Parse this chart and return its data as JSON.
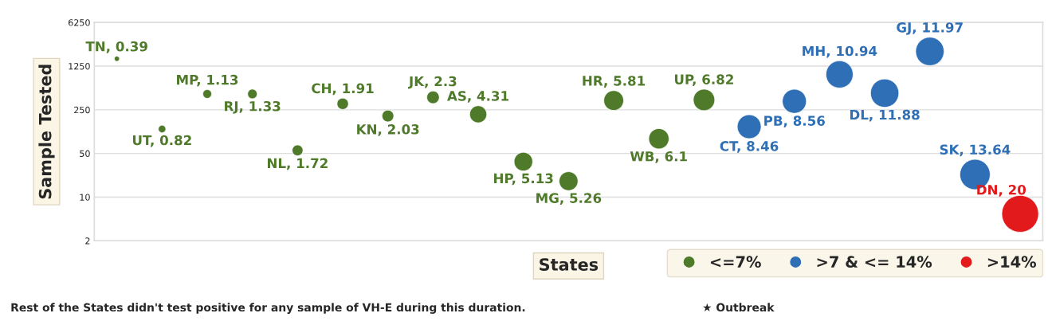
{
  "chart_data": {
    "type": "bubble",
    "ylabel": "Sample Tested",
    "xlabel": "States",
    "categories": [
      null,
      null,
      null,
      null,
      null,
      null,
      null,
      null,
      null,
      null,
      null,
      null,
      null,
      null,
      null,
      null,
      null,
      null,
      null,
      null,
      null
    ],
    "series": [
      {
        "name": "<=7%",
        "color": "#4e7a2a",
        "values": [
          1640,
          123,
          448,
          448,
          56,
          312,
          199,
          396,
          212,
          37,
          18,
          352,
          86,
          360,
          null,
          null,
          null,
          null,
          null,
          null,
          null
        ],
        "sizes": [
          0.0195,
          0.041,
          0.0565,
          0.0665,
          0.086,
          0.0955,
          0.1015,
          0.115,
          0.2155,
          0.2565,
          0.263,
          0.2905,
          0.305,
          0.341,
          null,
          null,
          null,
          null,
          null,
          null,
          null
        ]
      },
      {
        "name": ">7 & <= 14%",
        "color": "#2e6fb5",
        "values": [
          null,
          null,
          null,
          null,
          null,
          null,
          null,
          null,
          null,
          null,
          null,
          null,
          null,
          null,
          134,
          342,
          922,
          462,
          2150,
          23,
          null
        ],
        "sizes": [
          null,
          null,
          null,
          null,
          null,
          null,
          null,
          null,
          null,
          null,
          null,
          null,
          null,
          null,
          0.423,
          0.428,
          0.547,
          0.594,
          0.5985,
          0.682,
          null
        ]
      },
      {
        "name": ">14%",
        "color": "#e31a1c",
        "values": [
          null,
          null,
          null,
          null,
          null,
          null,
          null,
          null,
          null,
          null,
          null,
          null,
          null,
          null,
          null,
          null,
          null,
          null,
          null,
          null,
          5.4
        ],
        "sizes": [
          null,
          null,
          null,
          null,
          null,
          null,
          null,
          null,
          null,
          null,
          null,
          null,
          null,
          null,
          null,
          null,
          null,
          null,
          null,
          null,
          1
        ]
      }
    ],
    "log": "y",
    "ylim": [
      2,
      6250
    ],
    "yticks": [
      2,
      10,
      50,
      250,
      1250,
      6250
    ],
    "grid": "y",
    "legend": "bottom right",
    "annotations": [
      {
        "text": "TN, 0.39",
        "y": 1640
      },
      {
        "text": "UT, 0.82",
        "y": 123
      },
      {
        "text": "MP, 1.13",
        "y": 448
      },
      {
        "text": "RJ, 1.33",
        "y": 448
      },
      {
        "text": "NL, 1.72",
        "y": 56
      },
      {
        "text": "CH, 1.91",
        "y": 312
      },
      {
        "text": "KN, 2.03",
        "y": 199
      },
      {
        "text": "JK, 2.3",
        "y": 396
      },
      {
        "text": "AS, 4.31",
        "y": 212
      },
      {
        "text": "HP, 5.13",
        "y": 37
      },
      {
        "text": "MG, 5.26",
        "y": 18
      },
      {
        "text": "HR, 5.81",
        "y": 352
      },
      {
        "text": "WB, 6.1",
        "y": 86
      },
      {
        "text": "UP, 6.82",
        "y": 360
      },
      {
        "text": "CT, 8.46",
        "y": 134
      },
      {
        "text": "PB, 8.56",
        "y": 342
      },
      {
        "text": "MH, 10.94",
        "y": 922
      },
      {
        "text": "DL, 11.88",
        "y": 462
      },
      {
        "text": "GJ, 11.97",
        "y": 2150
      },
      {
        "text": "SK, 13.64",
        "y": 23
      },
      {
        "text": "DN, 20",
        "y": 5.4
      },
      "Rest of the States didn't test positive for any sample of VH-E during this duration.",
      "★ Outbreak"
    ]
  }
}
